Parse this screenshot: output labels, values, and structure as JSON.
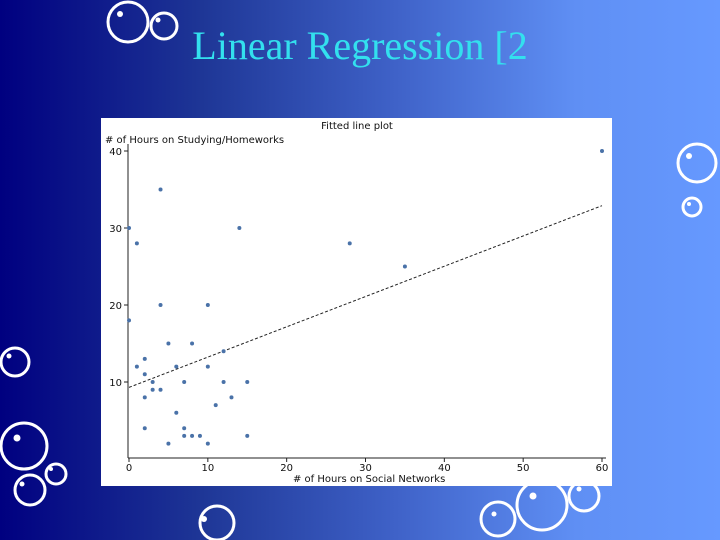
{
  "slide": {
    "title": "Linear Regression [2"
  },
  "colors": {
    "point": "#4a72a8",
    "fit_line": "#222222",
    "title_text": "#33e0ee"
  },
  "chart_data": {
    "type": "scatter",
    "title": "Fitted line plot",
    "xlabel": "# of Hours on Social Networks",
    "ylabel": "# of Hours on Studying/Homeworks",
    "xlim": [
      0,
      60
    ],
    "ylim": [
      0,
      40
    ],
    "xticks": [
      0,
      10,
      20,
      30,
      40,
      50,
      60
    ],
    "yticks": [
      10,
      20,
      30,
      40
    ],
    "grid": false,
    "legend": "none",
    "series": [
      {
        "points": [
          [
            0,
            30
          ],
          [
            0,
            18
          ],
          [
            1,
            28
          ],
          [
            1,
            12
          ],
          [
            2,
            13
          ],
          [
            2,
            11
          ],
          [
            2,
            8
          ],
          [
            2,
            4
          ],
          [
            3,
            10
          ],
          [
            3,
            9
          ],
          [
            4,
            35
          ],
          [
            4,
            20
          ],
          [
            4,
            9
          ],
          [
            5,
            15
          ],
          [
            5,
            2
          ],
          [
            6,
            12
          ],
          [
            6,
            6
          ],
          [
            7,
            10
          ],
          [
            7,
            4
          ],
          [
            7,
            3
          ],
          [
            8,
            15
          ],
          [
            8,
            3
          ],
          [
            9,
            3
          ],
          [
            10,
            20
          ],
          [
            10,
            12
          ],
          [
            10,
            2
          ],
          [
            11,
            7
          ],
          [
            12,
            14
          ],
          [
            12,
            10
          ],
          [
            13,
            8
          ],
          [
            14,
            30
          ],
          [
            15,
            10
          ],
          [
            15,
            3
          ],
          [
            28,
            28
          ],
          [
            35,
            25
          ],
          [
            60,
            40
          ]
        ]
      }
    ],
    "fit_line": {
      "x": [
        0,
        60
      ],
      "y": [
        9.3,
        32.9
      ]
    }
  }
}
